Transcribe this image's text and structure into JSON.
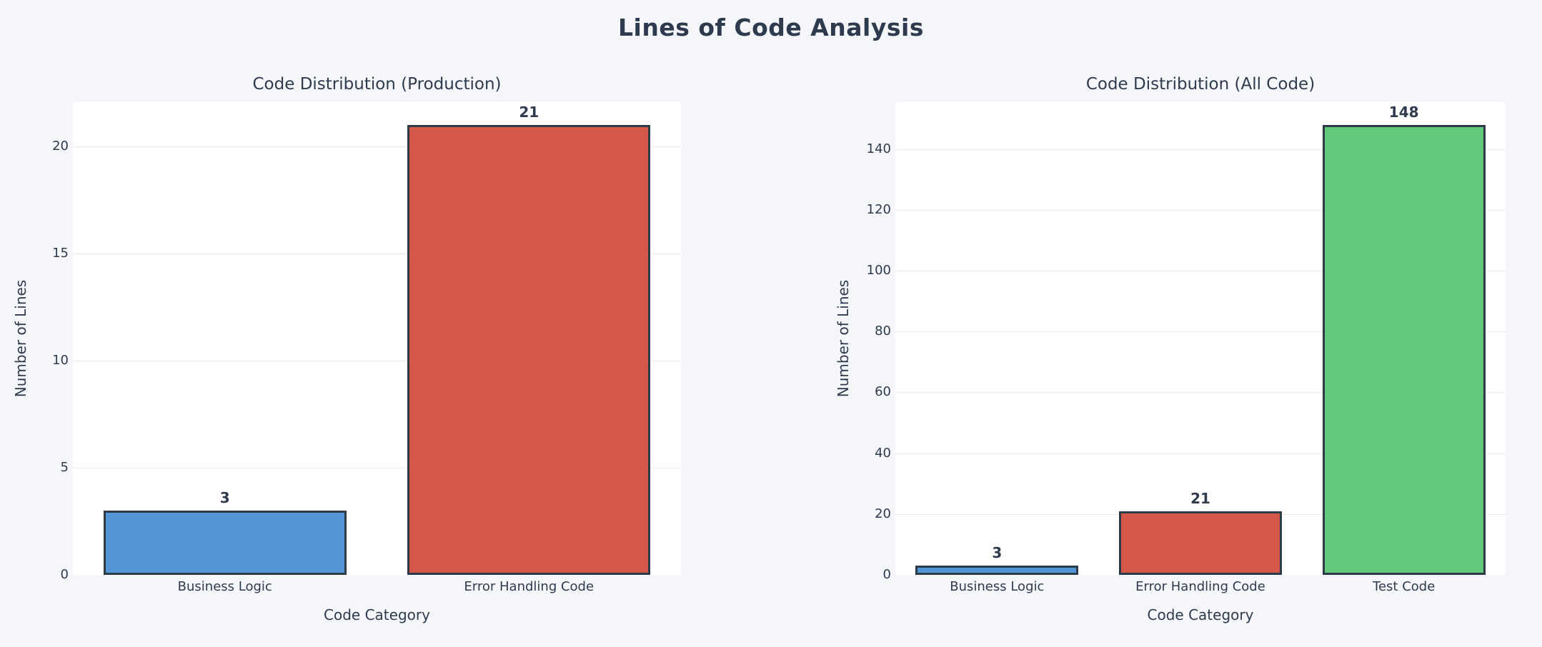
{
  "title": "Lines of Code Analysis",
  "colors": {
    "background": "#f4f6f9",
    "plot_background": "#ffffff",
    "text": "#2e3b4e",
    "bar_edge": "#2d3a47",
    "gridline": "#e9edf1",
    "blue": "#5296d5",
    "red": "#d6584a",
    "green": "#62c87b"
  },
  "chart_data": [
    {
      "type": "bar",
      "title": "Code Distribution (Production)",
      "xlabel": "Code Category",
      "ylabel": "Number of Lines",
      "categories": [
        "Business Logic",
        "Error Handling Code"
      ],
      "values": [
        3,
        21
      ],
      "bar_colors": [
        "#5296d5",
        "#d6584a"
      ],
      "yticks": [
        0,
        5,
        10,
        15,
        20
      ],
      "ylim": [
        0,
        22.05
      ],
      "grid": true,
      "legend": "none",
      "value_labels_shown": true
    },
    {
      "type": "bar",
      "title": "Code Distribution (All Code)",
      "xlabel": "Code Category",
      "ylabel": "Number of Lines",
      "categories": [
        "Business Logic",
        "Error Handling Code",
        "Test Code"
      ],
      "values": [
        3,
        21,
        148
      ],
      "bar_colors": [
        "#5296d5",
        "#d6584a",
        "#62c87b"
      ],
      "yticks": [
        0,
        20,
        40,
        60,
        80,
        100,
        120,
        140
      ],
      "ylim": [
        0,
        155.4
      ],
      "grid": true,
      "legend": "none",
      "value_labels_shown": true
    }
  ]
}
